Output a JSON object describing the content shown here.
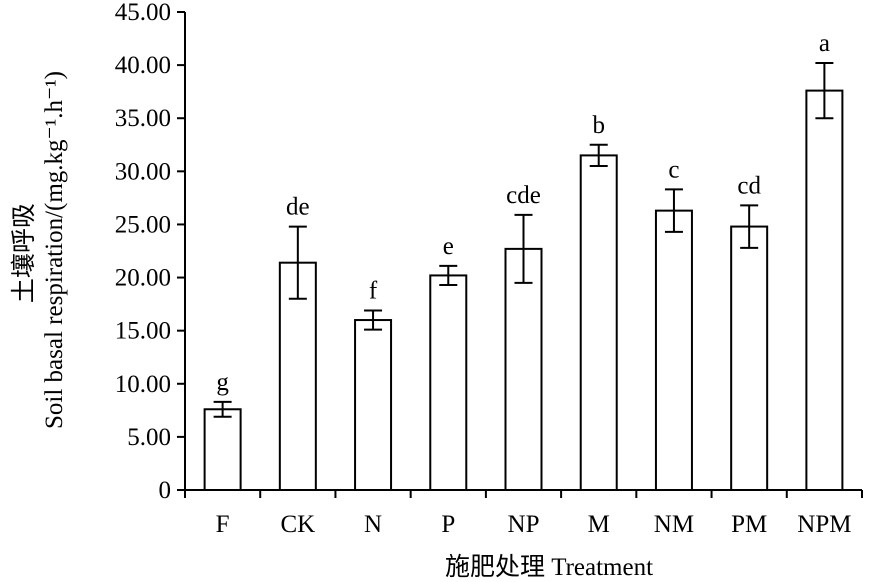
{
  "chart_data": {
    "type": "bar",
    "title": "",
    "xlabel": "施肥处理  Treatment",
    "ylabel_cn": "土壤呼吸",
    "ylabel_en": "Soil basal respiration",
    "ylabel_unit": "/(mg.kg⁻¹.h⁻¹)",
    "ylim": [
      0,
      45
    ],
    "yticks": [
      0,
      5,
      10,
      15,
      20,
      25,
      30,
      35,
      40,
      45
    ],
    "ytick_labels": [
      "0",
      "5.00",
      "10.00",
      "15.00",
      "20.00",
      "25.00",
      "30.00",
      "35.00",
      "40.00",
      "45.00"
    ],
    "grid": false,
    "legend": "none",
    "categories": [
      "F",
      "CK",
      "N",
      "P",
      "NP",
      "M",
      "NM",
      "PM",
      "NPM"
    ],
    "values": [
      7.6,
      21.4,
      16.0,
      20.2,
      22.7,
      31.5,
      26.3,
      24.8,
      37.6
    ],
    "errors": [
      0.7,
      3.4,
      0.9,
      0.9,
      3.2,
      1.0,
      2.0,
      2.0,
      2.6
    ],
    "significance": [
      "g",
      "de",
      "f",
      "e",
      "cde",
      "b",
      "c",
      "cd",
      "a"
    ],
    "colors": {
      "bar_fill": "#ffffff",
      "bar_stroke": "#000000",
      "axis": "#000000"
    }
  }
}
